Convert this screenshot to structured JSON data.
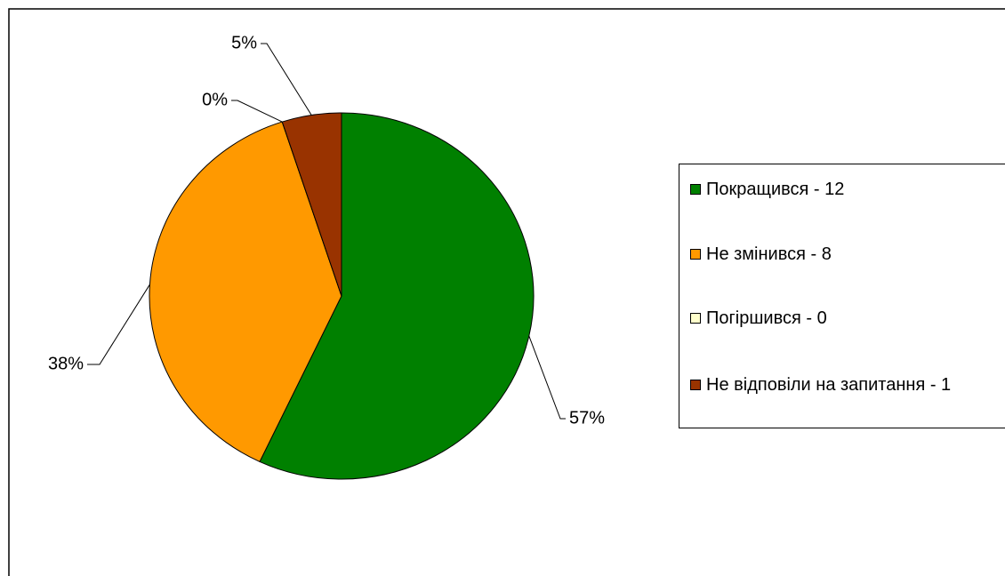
{
  "chart_data": {
    "type": "pie",
    "categories": [
      "Покращився - 12",
      "Не змінився - 8",
      "Погіршився - 0",
      "Не відповіли на запитання - 1"
    ],
    "values": [
      57,
      38,
      0,
      5
    ],
    "value_labels": [
      "57%",
      "38%",
      "0%",
      "5%"
    ],
    "colors": [
      "#008000",
      "#ff9900",
      "#ffffcc",
      "#993300"
    ],
    "legend": "right"
  }
}
